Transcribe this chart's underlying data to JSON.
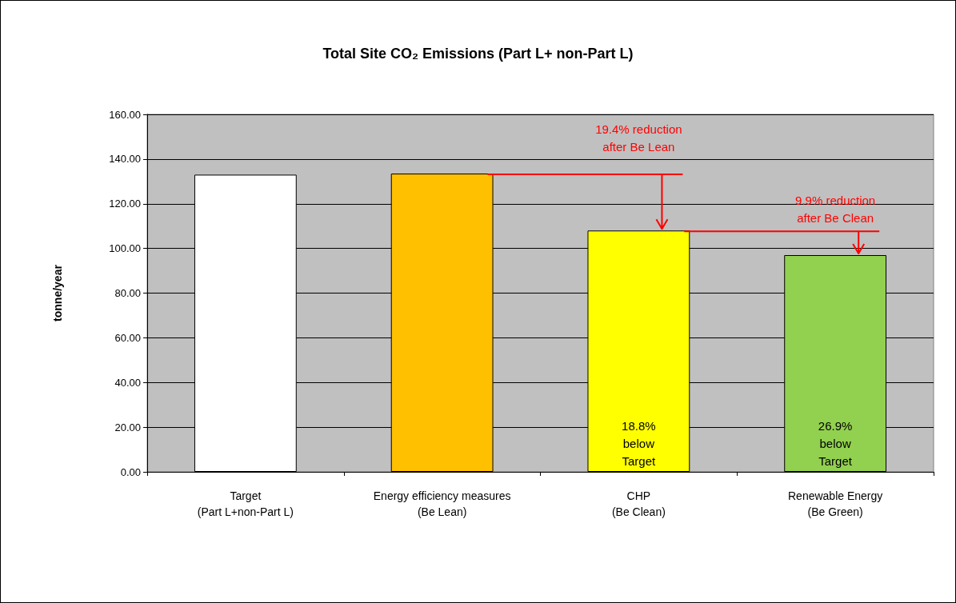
{
  "chart_data": {
    "type": "bar",
    "title": "Total Site CO₂ Emissions (Part L+ non-Part L)",
    "ylabel": "tonne/year",
    "categories": [
      "Target\n(Part L+non-Part L)",
      "Energy efficiency measures\n(Be Lean)",
      "CHP\n(Be Clean)",
      "Renewable Energy\n(Be Green)"
    ],
    "values": [
      133,
      133.5,
      108,
      97
    ],
    "colors": [
      "#ffffff",
      "#ffc000",
      "#ffff00",
      "#92d050"
    ],
    "ylim": [
      0,
      160
    ],
    "yticks": [
      {
        "value": 0,
        "label": "0.00"
      },
      {
        "value": 20,
        "label": "20.00"
      },
      {
        "value": 40,
        "label": "40.00"
      },
      {
        "value": 60,
        "label": "60.00"
      },
      {
        "value": 80,
        "label": "80.00"
      },
      {
        "value": 100,
        "label": "100.00"
      },
      {
        "value": 120,
        "label": "120.00"
      },
      {
        "value": 140,
        "label": "140.00"
      },
      {
        "value": 160,
        "label": "160.00"
      }
    ],
    "grid": "y",
    "annotations": [
      "19.4% reduction\nafter Be Lean",
      {
        "text": "9.9% reduction\nafter Be Clean",
        "x": "Renewable Energy\n(Be Green)",
        "y": 97
      },
      "18.8%\nbelow\nTarget",
      "26.9%\nbelow\nTarget"
    ]
  }
}
